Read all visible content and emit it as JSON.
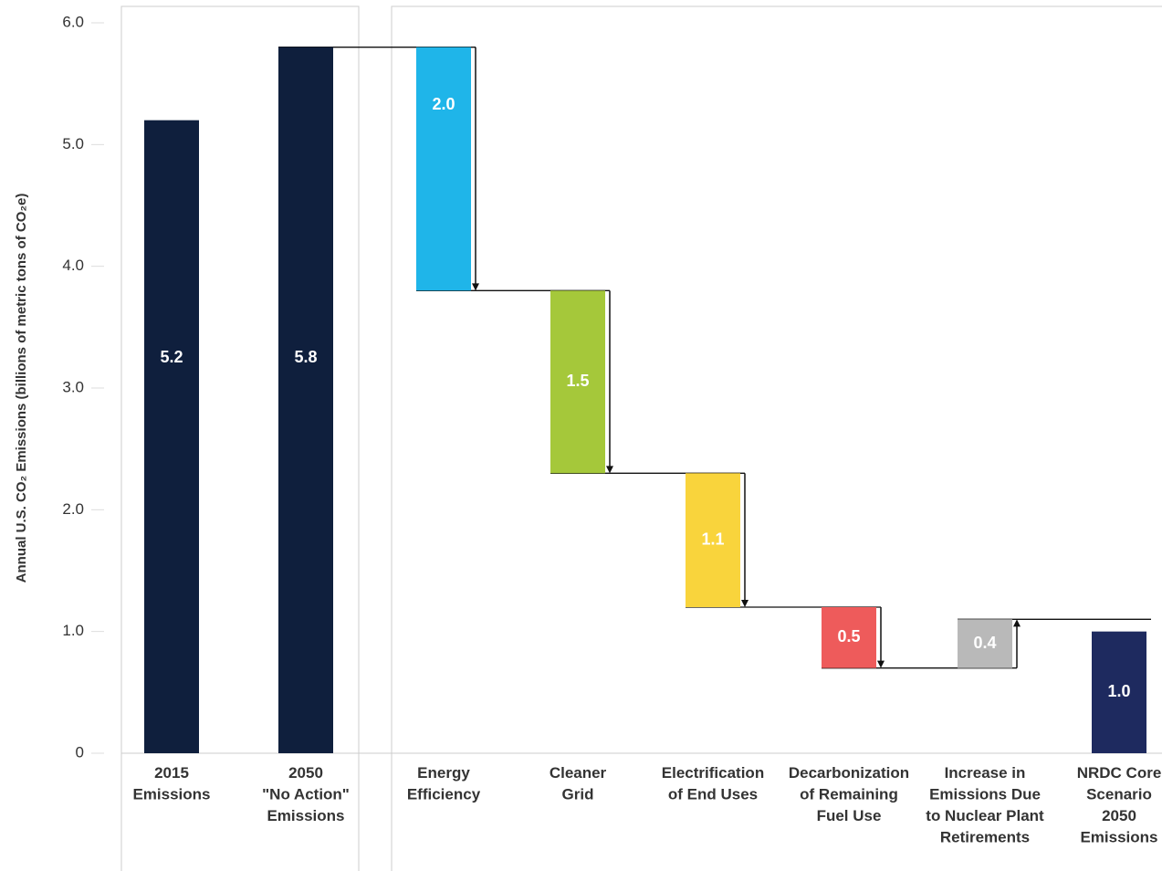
{
  "chart_data": {
    "type": "waterfall",
    "y_label": "Annual U.S. CO₂ Emissions (billions of metric tons of CO₂e)",
    "categories": [
      [
        "2015",
        "Emissions"
      ],
      [
        "2050",
        "\"No Action\"",
        "Emissions"
      ],
      [
        "Energy",
        "Efficiency"
      ],
      [
        "Cleaner",
        "Grid"
      ],
      [
        "Electrification",
        "of End Uses"
      ],
      [
        "Decarbonization",
        "of Remaining",
        "Fuel Use"
      ],
      [
        "Increase in",
        "Emissions Due",
        "to Nuclear Plant",
        "Retirements"
      ],
      [
        "NRDC Core",
        "Scenario",
        "2050",
        "Emissions"
      ]
    ],
    "values": [
      5.2,
      5.8,
      -2.0,
      -1.5,
      -1.1,
      -0.5,
      0.4,
      1.0
    ],
    "value_labels": [
      "5.2",
      "5.8",
      "2.0",
      "1.5",
      "1.1",
      "0.5",
      "0.4",
      "1.0"
    ],
    "measure": [
      "absolute",
      "absolute",
      "relative",
      "relative",
      "relative",
      "relative",
      "relative",
      "absolute"
    ],
    "colors": [
      "#0f1f3d",
      "#0f1f3d",
      "#1fb5e9",
      "#a5c83a",
      "#f9d43c",
      "#ee5b5b",
      "#b9b9b9",
      "#1e2a5f"
    ],
    "ylim": [
      0,
      6.0
    ],
    "yticks": [
      0,
      {
        "value": 1,
        "label": "1.0"
      },
      {
        "value": 2,
        "label": "2.0"
      },
      {
        "value": 3,
        "label": "3.0"
      },
      {
        "value": 4,
        "label": "4.0"
      },
      {
        "value": 5,
        "label": "5.0"
      },
      {
        "value": 6,
        "label": "6.0"
      }
    ]
  }
}
